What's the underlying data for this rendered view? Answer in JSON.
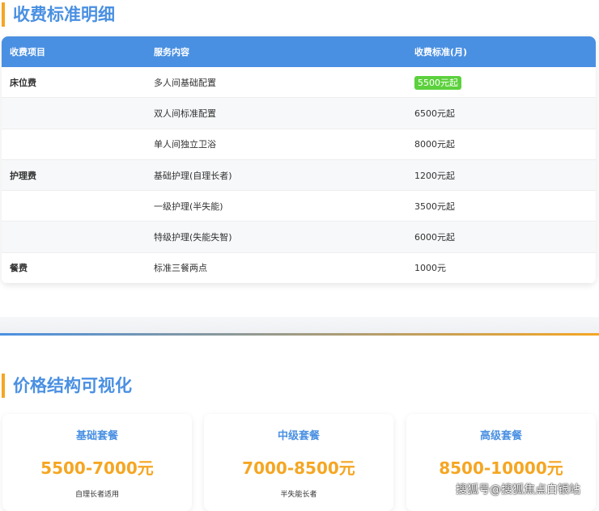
{
  "section1": {
    "title": "收费标准明细"
  },
  "table": {
    "headers": [
      "收费项目",
      "服务内容",
      "收费标准(月)"
    ],
    "rows": [
      {
        "item": "床位费",
        "service": "多人间基础配置",
        "price": "5500元起",
        "highlight": true
      },
      {
        "item": "",
        "service": "双人间标准配置",
        "price": "6500元起"
      },
      {
        "item": "",
        "service": "单人间独立卫浴",
        "price": "8000元起"
      },
      {
        "item": "护理费",
        "service": "基础护理(自理长者)",
        "price": "1200元起"
      },
      {
        "item": "",
        "service": "一级护理(半失能)",
        "price": "3500元起"
      },
      {
        "item": "",
        "service": "特级护理(失能失智)",
        "price": "6000元起"
      },
      {
        "item": "餐费",
        "service": "标准三餐两点",
        "price": "1000元"
      }
    ]
  },
  "section2": {
    "title": "价格结构可视化"
  },
  "cards": [
    {
      "name": "基础套餐",
      "price": "5500-7000元",
      "desc": "自理长者适用"
    },
    {
      "name": "中级套餐",
      "price": "7000-8500元",
      "desc": "半失能长者"
    },
    {
      "name": "高级套餐",
      "price": "8500-10000元",
      "desc": ""
    }
  ],
  "watermark": "搜狐号@搜狐焦点白银站",
  "colors": {
    "accent": "#4a90e2",
    "highlight": "#f5a623",
    "badge": "#5cd13d"
  }
}
